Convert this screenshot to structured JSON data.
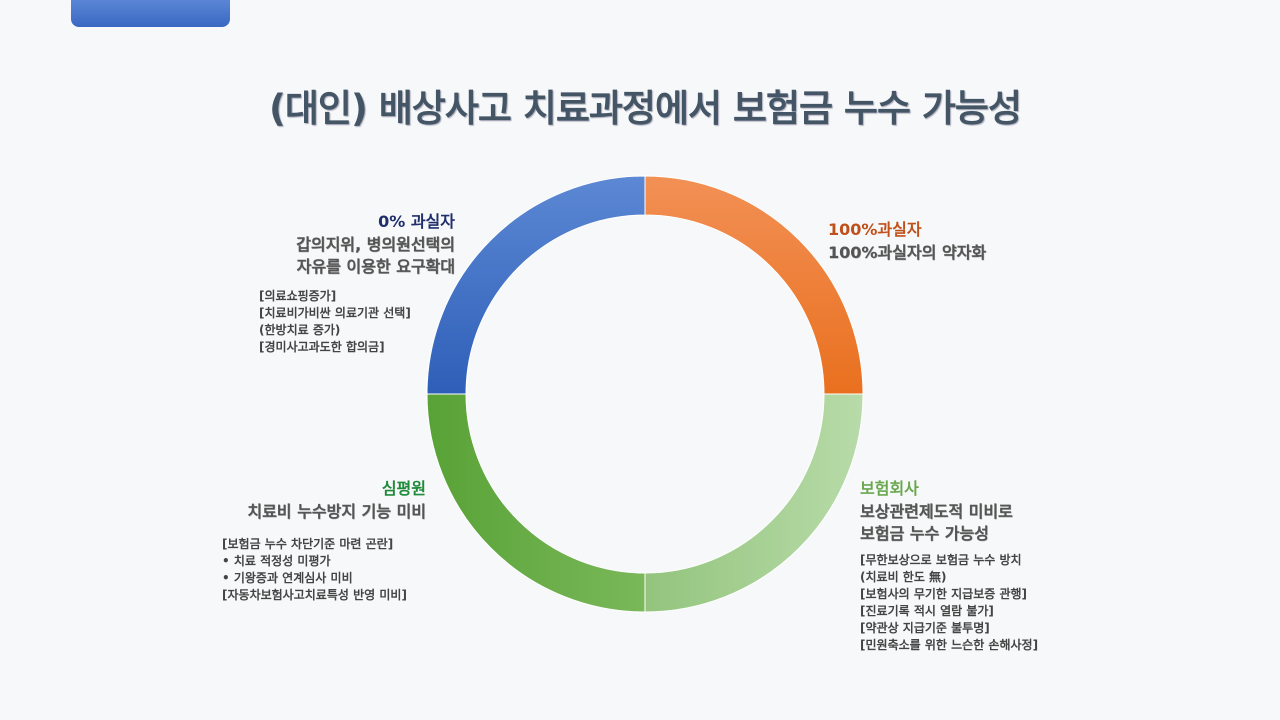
{
  "title": "(대인) 배상사고  치료과정에서 보험금 누수 가능성",
  "colors": {
    "tab": "#3a68c2",
    "blue": "#3a67c0",
    "orange": "#ee7a2c",
    "light_green": "#9fcc8a",
    "green": "#64ad3e",
    "head_blue": "#1f2f6b",
    "head_orange": "#c0501a",
    "head_green": "#1e8a3a",
    "head_light_green": "#6aa84f"
  },
  "segments": [
    {
      "key": "zero_fault",
      "value": 25,
      "color": "#3a67c0"
    },
    {
      "key": "full_fault",
      "value": 25,
      "color": "#ee7a2c"
    },
    {
      "key": "insurer",
      "value": 25,
      "color": "#a5d092"
    },
    {
      "key": "hira",
      "value": 25,
      "color": "#64ad3e"
    }
  ],
  "zero_fault": {
    "head": "0% 과실자",
    "desc": [
      "갑의지위, 병의원선택의",
      "자유를 이용한 요구확대"
    ],
    "notes": [
      "[의료쇼핑증가]",
      "[치료비가비싼 의료기관 선택]",
      " (한방치료 증가)",
      "[경미사고과도한 합의금]"
    ]
  },
  "full_fault": {
    "head": "100%과실자",
    "desc": [
      "100%과실자의 약자화"
    ]
  },
  "hira": {
    "head": "심평원",
    "desc": [
      "치료비 누수방지 기능 미비"
    ],
    "notes": [
      "[보험금 누수 차단기준 마련 곤란]",
      "  • 치료 적정성 미평가",
      "  • 기왕증과 연계심사 미비",
      "[자동차보험사고치료특성 반영 미비]"
    ]
  },
  "insurer": {
    "head": "보험회사",
    "desc": [
      "보상관련제도적 미비로",
      "보험금 누수 가능성"
    ],
    "notes": [
      "[무한보상으로 보험금 누수 방치",
      " (치료비 한도 無)",
      "[보험사의 무기한 지급보증 관행]",
      "[진료기록 적시 열람 불가]",
      "[약관상 지급기준 불투명]",
      "[민원축소를 위한 느슨한 손해사정]"
    ]
  }
}
